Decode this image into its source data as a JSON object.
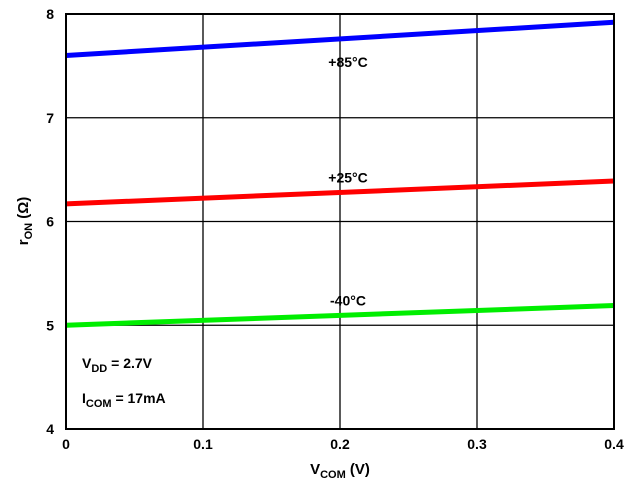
{
  "chart_data": {
    "type": "line",
    "xlim": [
      0,
      0.4
    ],
    "ylim": [
      4,
      8
    ],
    "xticks": [
      "0",
      "0.1",
      "0.2",
      "0.3",
      "0.4"
    ],
    "yticks": [
      "4",
      "5",
      "6",
      "7",
      "8"
    ],
    "xlabel": {
      "main": "V",
      "sub": "COM",
      "unit": " (V)"
    },
    "ylabel": {
      "main": "r",
      "sub": "ON",
      "unit": " (Ω)"
    },
    "grid": true,
    "series": [
      {
        "name": "+85°C",
        "color": "#0000ff",
        "x": [
          0,
          0.4
        ],
        "y": [
          7.6,
          7.92
        ]
      },
      {
        "name": "+25°C",
        "color": "#ff0000",
        "x": [
          0,
          0.4
        ],
        "y": [
          6.17,
          6.39
        ]
      },
      {
        "name": "-40°C",
        "color": "#00ee00",
        "x": [
          0,
          0.4
        ],
        "y": [
          5.0,
          5.19
        ]
      }
    ],
    "annotations": [
      {
        "main": "V",
        "sub": "DD",
        "rest": " = 2.7V"
      },
      {
        "main": "I",
        "sub": "COM",
        "rest": " = 17mA"
      }
    ]
  }
}
